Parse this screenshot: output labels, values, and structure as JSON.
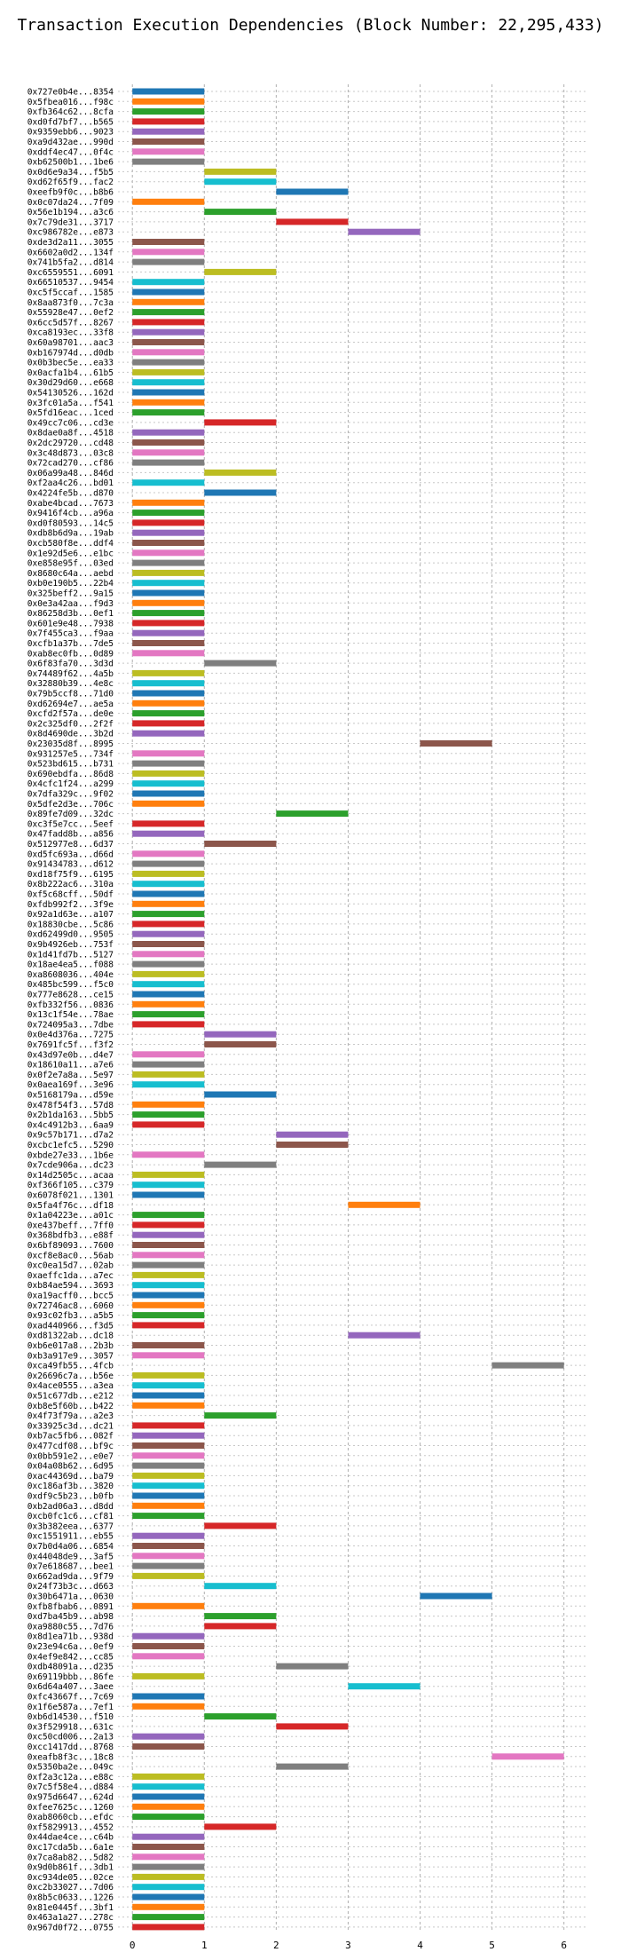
{
  "chart_data": {
    "type": "bar",
    "title": "Transaction Execution Dependencies (Block Number: 22,295,433)",
    "xlabel": "",
    "ylabel": "",
    "xlim": [
      -0.2,
      6.3
    ],
    "xticks": [
      0,
      1,
      2,
      3,
      4,
      5,
      6
    ],
    "grid": true,
    "legend": "none",
    "colors": [
      "#1f77b4",
      "#ff7f0e",
      "#2ca02c",
      "#d62728",
      "#9467bd",
      "#8c564b",
      "#e377c2",
      "#7f7f7f",
      "#bcbd22",
      "#17becf"
    ],
    "transactions": [
      {
        "label": "0x727e0b4e...8354",
        "start": 0,
        "end": 1
      },
      {
        "label": "0x5fbea016...f98c",
        "start": 0,
        "end": 1
      },
      {
        "label": "0xfb364c62...8cfa",
        "start": 0,
        "end": 1
      },
      {
        "label": "0xd0fd7bf7...b565",
        "start": 0,
        "end": 1
      },
      {
        "label": "0x9359ebb6...9023",
        "start": 0,
        "end": 1
      },
      {
        "label": "0xa9d432ae...990d",
        "start": 0,
        "end": 1
      },
      {
        "label": "0xddf4ec47...0f4c",
        "start": 0,
        "end": 1
      },
      {
        "label": "0xb62500b1...1be6",
        "start": 0,
        "end": 1
      },
      {
        "label": "0x0d6e9a34...f5b5",
        "start": 1,
        "end": 2
      },
      {
        "label": "0xd62f65f9...fac2",
        "start": 1,
        "end": 2
      },
      {
        "label": "0xeefb9f0c...b8b6",
        "start": 2,
        "end": 3
      },
      {
        "label": "0x0c07da24...7f09",
        "start": 0,
        "end": 1
      },
      {
        "label": "0x56e1b194...a3c6",
        "start": 1,
        "end": 2
      },
      {
        "label": "0x7c79de31...3717",
        "start": 2,
        "end": 3
      },
      {
        "label": "0xc986782e...e873",
        "start": 3,
        "end": 4
      },
      {
        "label": "0xde3d2a11...3055",
        "start": 0,
        "end": 1
      },
      {
        "label": "0x6602a0d2...134f",
        "start": 0,
        "end": 1
      },
      {
        "label": "0x741b5fa2...d814",
        "start": 0,
        "end": 1
      },
      {
        "label": "0xc6559551...6091",
        "start": 1,
        "end": 2
      },
      {
        "label": "0x66510537...9454",
        "start": 0,
        "end": 1
      },
      {
        "label": "0xc5f5ccaf...1585",
        "start": 0,
        "end": 1
      },
      {
        "label": "0x8aa873f0...7c3a",
        "start": 0,
        "end": 1
      },
      {
        "label": "0x55928e47...0ef2",
        "start": 0,
        "end": 1
      },
      {
        "label": "0x6cc5d57f...8267",
        "start": 0,
        "end": 1
      },
      {
        "label": "0xca8193ec...33f8",
        "start": 0,
        "end": 1
      },
      {
        "label": "0x60a98701...aac3",
        "start": 0,
        "end": 1
      },
      {
        "label": "0xb167974d...d0db",
        "start": 0,
        "end": 1
      },
      {
        "label": "0x0b3bec5e...ea33",
        "start": 0,
        "end": 1
      },
      {
        "label": "0x0acfa1b4...61b5",
        "start": 0,
        "end": 1
      },
      {
        "label": "0x30d29d60...e668",
        "start": 0,
        "end": 1
      },
      {
        "label": "0x54130526...162d",
        "start": 0,
        "end": 1
      },
      {
        "label": "0x3fc01a5a...f541",
        "start": 0,
        "end": 1
      },
      {
        "label": "0x5fd16eac...1ced",
        "start": 0,
        "end": 1
      },
      {
        "label": "0x49cc7c06...cd3e",
        "start": 1,
        "end": 2
      },
      {
        "label": "0x8dae0a8f...4518",
        "start": 0,
        "end": 1
      },
      {
        "label": "0x2dc29720...cd48",
        "start": 0,
        "end": 1
      },
      {
        "label": "0x3c48d873...03c8",
        "start": 0,
        "end": 1
      },
      {
        "label": "0x72cad270...cf86",
        "start": 0,
        "end": 1
      },
      {
        "label": "0x06a99a48...846d",
        "start": 1,
        "end": 2
      },
      {
        "label": "0xf2aa4c26...bd01",
        "start": 0,
        "end": 1
      },
      {
        "label": "0x4224fe5b...d870",
        "start": 1,
        "end": 2
      },
      {
        "label": "0xabe4bcad...7673",
        "start": 0,
        "end": 1
      },
      {
        "label": "0x9416f4cb...a96a",
        "start": 0,
        "end": 1
      },
      {
        "label": "0xd0f80593...14c5",
        "start": 0,
        "end": 1
      },
      {
        "label": "0xdb8b6d9a...19ab",
        "start": 0,
        "end": 1
      },
      {
        "label": "0xcb580f8e...ddf4",
        "start": 0,
        "end": 1
      },
      {
        "label": "0x1e92d5e6...e1bc",
        "start": 0,
        "end": 1
      },
      {
        "label": "0xe858e95f...03ed",
        "start": 0,
        "end": 1
      },
      {
        "label": "0x8680c64a...aebd",
        "start": 0,
        "end": 1
      },
      {
        "label": "0xb0e190b5...22b4",
        "start": 0,
        "end": 1
      },
      {
        "label": "0x325beff2...9a15",
        "start": 0,
        "end": 1
      },
      {
        "label": "0x0e3a42aa...f9d3",
        "start": 0,
        "end": 1
      },
      {
        "label": "0x86258d3b...0ef1",
        "start": 0,
        "end": 1
      },
      {
        "label": "0x601e9e48...7938",
        "start": 0,
        "end": 1
      },
      {
        "label": "0x7f455ca3...f9aa",
        "start": 0,
        "end": 1
      },
      {
        "label": "0xcfb1a37b...7de5",
        "start": 0,
        "end": 1
      },
      {
        "label": "0xab8ec0fb...0d89",
        "start": 0,
        "end": 1
      },
      {
        "label": "0x6f83fa70...3d3d",
        "start": 1,
        "end": 2
      },
      {
        "label": "0x74489f62...4a5b",
        "start": 0,
        "end": 1
      },
      {
        "label": "0x32880b39...4e8c",
        "start": 0,
        "end": 1
      },
      {
        "label": "0x79b5ccf8...71d0",
        "start": 0,
        "end": 1
      },
      {
        "label": "0xd62694e7...ae5a",
        "start": 0,
        "end": 1
      },
      {
        "label": "0xcfd2f57a...de0e",
        "start": 0,
        "end": 1
      },
      {
        "label": "0x2c325df0...2f2f",
        "start": 0,
        "end": 1
      },
      {
        "label": "0x8d4690de...3b2d",
        "start": 0,
        "end": 1
      },
      {
        "label": "0x23035d8f...8995",
        "start": 4,
        "end": 5
      },
      {
        "label": "0x931257e5...734f",
        "start": 0,
        "end": 1
      },
      {
        "label": "0x523bd615...b731",
        "start": 0,
        "end": 1
      },
      {
        "label": "0x690ebdfa...86d8",
        "start": 0,
        "end": 1
      },
      {
        "label": "0x4cfc1f24...a299",
        "start": 0,
        "end": 1
      },
      {
        "label": "0x7dfa329c...9f02",
        "start": 0,
        "end": 1
      },
      {
        "label": "0x5dfe2d3e...706c",
        "start": 0,
        "end": 1
      },
      {
        "label": "0x89fe7d09...32dc",
        "start": 2,
        "end": 3
      },
      {
        "label": "0xc3f5e7cc...5eef",
        "start": 0,
        "end": 1
      },
      {
        "label": "0x47fadd8b...a856",
        "start": 0,
        "end": 1
      },
      {
        "label": "0x512977e8...6d37",
        "start": 1,
        "end": 2
      },
      {
        "label": "0xd5fc693a...d66d",
        "start": 0,
        "end": 1
      },
      {
        "label": "0x91434783...d612",
        "start": 0,
        "end": 1
      },
      {
        "label": "0xd18f75f9...6195",
        "start": 0,
        "end": 1
      },
      {
        "label": "0x8b222ac6...310a",
        "start": 0,
        "end": 1
      },
      {
        "label": "0xf5c68cff...50df",
        "start": 0,
        "end": 1
      },
      {
        "label": "0xfdb992f2...3f9e",
        "start": 0,
        "end": 1
      },
      {
        "label": "0x92a1d63e...a107",
        "start": 0,
        "end": 1
      },
      {
        "label": "0x18830cbe...5c86",
        "start": 0,
        "end": 1
      },
      {
        "label": "0xd62499d0...9505",
        "start": 0,
        "end": 1
      },
      {
        "label": "0x9b4926eb...753f",
        "start": 0,
        "end": 1
      },
      {
        "label": "0x1d41fd7b...5127",
        "start": 0,
        "end": 1
      },
      {
        "label": "0x18ae4ea5...f088",
        "start": 0,
        "end": 1
      },
      {
        "label": "0xa8608036...404e",
        "start": 0,
        "end": 1
      },
      {
        "label": "0x485bc599...f5c0",
        "start": 0,
        "end": 1
      },
      {
        "label": "0x777e8628...ce15",
        "start": 0,
        "end": 1
      },
      {
        "label": "0xfb332f56...0836",
        "start": 0,
        "end": 1
      },
      {
        "label": "0x13c1f54e...78ae",
        "start": 0,
        "end": 1
      },
      {
        "label": "0x724095a3...7dbe",
        "start": 0,
        "end": 1
      },
      {
        "label": "0x0e4d376a...7275",
        "start": 1,
        "end": 2
      },
      {
        "label": "0x7691fc5f...f3f2",
        "start": 1,
        "end": 2
      },
      {
        "label": "0x43d97e0b...d4e7",
        "start": 0,
        "end": 1
      },
      {
        "label": "0x18610a11...a7e6",
        "start": 0,
        "end": 1
      },
      {
        "label": "0x0f2e7a8a...5e97",
        "start": 0,
        "end": 1
      },
      {
        "label": "0x0aea169f...3e96",
        "start": 0,
        "end": 1
      },
      {
        "label": "0x5168179a...d59e",
        "start": 1,
        "end": 2
      },
      {
        "label": "0x478f54f3...57d8",
        "start": 0,
        "end": 1
      },
      {
        "label": "0x2b1da163...5bb5",
        "start": 0,
        "end": 1
      },
      {
        "label": "0x4c4912b3...6aa9",
        "start": 0,
        "end": 1
      },
      {
        "label": "0x9c57b171...d7a2",
        "start": 2,
        "end": 3
      },
      {
        "label": "0xcbc1efc5...5290",
        "start": 2,
        "end": 3
      },
      {
        "label": "0xbde27e33...1b6e",
        "start": 0,
        "end": 1
      },
      {
        "label": "0x7cde906a...dc23",
        "start": 1,
        "end": 2
      },
      {
        "label": "0x14d2505c...acaa",
        "start": 0,
        "end": 1
      },
      {
        "label": "0xf366f105...c379",
        "start": 0,
        "end": 1
      },
      {
        "label": "0x6078f021...1301",
        "start": 0,
        "end": 1
      },
      {
        "label": "0x5fa4f76c...df18",
        "start": 3,
        "end": 4
      },
      {
        "label": "0x1a04223e...a01c",
        "start": 0,
        "end": 1
      },
      {
        "label": "0xe437beff...7ff0",
        "start": 0,
        "end": 1
      },
      {
        "label": "0x368bdfb3...e88f",
        "start": 0,
        "end": 1
      },
      {
        "label": "0x6bf89093...7600",
        "start": 0,
        "end": 1
      },
      {
        "label": "0xcf8e8ac0...56ab",
        "start": 0,
        "end": 1
      },
      {
        "label": "0xc0ea15d7...02ab",
        "start": 0,
        "end": 1
      },
      {
        "label": "0xaeffc1da...a7ec",
        "start": 0,
        "end": 1
      },
      {
        "label": "0xb84ae594...3693",
        "start": 0,
        "end": 1
      },
      {
        "label": "0xa19acff0...bcc5",
        "start": 0,
        "end": 1
      },
      {
        "label": "0x72746ac8...6060",
        "start": 0,
        "end": 1
      },
      {
        "label": "0x93c02fb3...a5b5",
        "start": 0,
        "end": 1
      },
      {
        "label": "0xad440966...f3d5",
        "start": 0,
        "end": 1
      },
      {
        "label": "0xd81322ab...dc18",
        "start": 3,
        "end": 4
      },
      {
        "label": "0xb6e017a8...2b3b",
        "start": 0,
        "end": 1
      },
      {
        "label": "0xb3a917e9...3057",
        "start": 0,
        "end": 1
      },
      {
        "label": "0xca49fb55...4fcb",
        "start": 5,
        "end": 6
      },
      {
        "label": "0x26696c7a...b56e",
        "start": 0,
        "end": 1
      },
      {
        "label": "0x4ace0555...a3ea",
        "start": 0,
        "end": 1
      },
      {
        "label": "0x51c677db...e212",
        "start": 0,
        "end": 1
      },
      {
        "label": "0xb8e5f60b...b422",
        "start": 0,
        "end": 1
      },
      {
        "label": "0x4f73f79a...a2e3",
        "start": 1,
        "end": 2
      },
      {
        "label": "0x33925c3d...dc21",
        "start": 0,
        "end": 1
      },
      {
        "label": "0xb7ac5fb6...082f",
        "start": 0,
        "end": 1
      },
      {
        "label": "0x477cdf08...bf9c",
        "start": 0,
        "end": 1
      },
      {
        "label": "0x0bb591e2...e0e7",
        "start": 0,
        "end": 1
      },
      {
        "label": "0x04a08b62...6d95",
        "start": 0,
        "end": 1
      },
      {
        "label": "0xac44369d...ba79",
        "start": 0,
        "end": 1
      },
      {
        "label": "0xc186af3b...3820",
        "start": 0,
        "end": 1
      },
      {
        "label": "0xdf9c5b23...b0fb",
        "start": 0,
        "end": 1
      },
      {
        "label": "0xb2ad06a3...d8dd",
        "start": 0,
        "end": 1
      },
      {
        "label": "0xcb0fc1c6...cf81",
        "start": 0,
        "end": 1
      },
      {
        "label": "0x3b382eea...6377",
        "start": 1,
        "end": 2
      },
      {
        "label": "0xc1551911...eb55",
        "start": 0,
        "end": 1
      },
      {
        "label": "0x7b0d4a06...6854",
        "start": 0,
        "end": 1
      },
      {
        "label": "0x44048de9...3af5",
        "start": 0,
        "end": 1
      },
      {
        "label": "0x7e618687...bee1",
        "start": 0,
        "end": 1
      },
      {
        "label": "0x662ad9da...9f79",
        "start": 0,
        "end": 1
      },
      {
        "label": "0x24f73b3c...d663",
        "start": 1,
        "end": 2
      },
      {
        "label": "0x30b6471a...0630",
        "start": 4,
        "end": 5
      },
      {
        "label": "0xfb8fbab6...0891",
        "start": 0,
        "end": 1
      },
      {
        "label": "0xd7ba45b9...ab98",
        "start": 1,
        "end": 2
      },
      {
        "label": "0xa9880c55...7d76",
        "start": 1,
        "end": 2
      },
      {
        "label": "0x8d1ea71b...938d",
        "start": 0,
        "end": 1
      },
      {
        "label": "0x23e94c6a...0ef9",
        "start": 0,
        "end": 1
      },
      {
        "label": "0x4ef9e842...cc85",
        "start": 0,
        "end": 1
      },
      {
        "label": "0xdb48091a...d235",
        "start": 2,
        "end": 3
      },
      {
        "label": "0x69119bbb...86fe",
        "start": 0,
        "end": 1
      },
      {
        "label": "0x6d64a407...3aee",
        "start": 3,
        "end": 4
      },
      {
        "label": "0xfc43667f...7c69",
        "start": 0,
        "end": 1
      },
      {
        "label": "0x1f6e587a...7ef1",
        "start": 0,
        "end": 1
      },
      {
        "label": "0xb6d14530...f510",
        "start": 1,
        "end": 2
      },
      {
        "label": "0x3f529918...631c",
        "start": 2,
        "end": 3
      },
      {
        "label": "0xc50cd006...2a13",
        "start": 0,
        "end": 1
      },
      {
        "label": "0xcc1417dd...8768",
        "start": 0,
        "end": 1
      },
      {
        "label": "0xeafb8f3c...18c8",
        "start": 5,
        "end": 6
      },
      {
        "label": "0x5350ba2e...049c",
        "start": 2,
        "end": 3
      },
      {
        "label": "0xf2a3c12a...e88c",
        "start": 0,
        "end": 1
      },
      {
        "label": "0x7c5f58e4...d884",
        "start": 0,
        "end": 1
      },
      {
        "label": "0x975d6647...624d",
        "start": 0,
        "end": 1
      },
      {
        "label": "0xfee7625c...1260",
        "start": 0,
        "end": 1
      },
      {
        "label": "0xab8060cb...efdc",
        "start": 0,
        "end": 1
      },
      {
        "label": "0xf5829913...4552",
        "start": 1,
        "end": 2
      },
      {
        "label": "0x44dae4ce...c64b",
        "start": 0,
        "end": 1
      },
      {
        "label": "0xc17cda5b...6a1e",
        "start": 0,
        "end": 1
      },
      {
        "label": "0x7ca8ab82...5d82",
        "start": 0,
        "end": 1
      },
      {
        "label": "0x9d0b861f...3db1",
        "start": 0,
        "end": 1
      },
      {
        "label": "0xc934de05...02ce",
        "start": 0,
        "end": 1
      },
      {
        "label": "0xc2b33027...7d06",
        "start": 0,
        "end": 1
      },
      {
        "label": "0x8b5c0633...1226",
        "start": 0,
        "end": 1
      },
      {
        "label": "0x81e0445f...3bf1",
        "start": 0,
        "end": 1
      },
      {
        "label": "0x463a1a27...278c",
        "start": 0,
        "end": 1
      },
      {
        "label": "0x967d0f72...0755",
        "start": 0,
        "end": 1
      }
    ]
  }
}
